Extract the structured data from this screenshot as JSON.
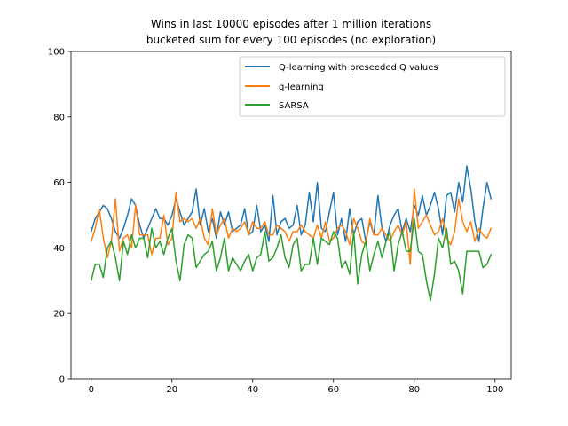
{
  "chart_data": {
    "type": "line",
    "title_line1": "Wins in last 10000 episodes after 1 million iterations",
    "title_line2": "bucketed sum for every 100 episodes (no exploration)",
    "xlabel": "",
    "ylabel": "",
    "xlim": [
      -5,
      104
    ],
    "ylim": [
      0,
      100
    ],
    "xticks": [
      0,
      20,
      40,
      60,
      80,
      100
    ],
    "yticks": [
      0,
      20,
      40,
      60,
      80,
      100
    ],
    "grid": false,
    "legend_position": "top-right",
    "series": [
      {
        "name": "Q-learning with preseeded Q values",
        "color": "#1f77b4",
        "values": [
          45,
          49,
          51,
          53,
          52,
          49,
          45,
          43,
          46,
          50,
          55,
          53,
          47,
          43,
          46,
          49,
          52,
          49,
          49,
          47,
          50,
          55,
          51,
          47,
          49,
          51,
          58,
          47,
          52,
          45,
          49,
          43,
          51,
          47,
          51,
          45,
          46,
          47,
          52,
          44,
          45,
          53,
          45,
          47,
          42,
          56,
          44,
          48,
          49,
          46,
          47,
          53,
          44,
          47,
          57,
          48,
          60,
          46,
          45,
          51,
          57,
          44,
          49,
          42,
          52,
          44,
          48,
          49,
          42,
          48,
          44,
          56,
          46,
          42,
          47,
          50,
          52,
          45,
          49,
          45,
          53,
          50,
          56,
          50,
          53,
          57,
          52,
          44,
          56,
          57,
          51,
          60,
          54,
          65,
          58,
          48,
          42,
          52,
          60,
          55
        ]
      },
      {
        "name": "q-learning",
        "color": "#ff7f0e",
        "values": [
          42,
          46,
          52,
          43,
          37,
          42,
          55,
          39,
          43,
          44,
          40,
          53,
          44,
          44,
          44,
          38,
          43,
          43,
          50,
          41,
          43,
          57,
          48,
          49,
          48,
          49,
          46,
          49,
          43,
          41,
          52,
          44,
          47,
          49,
          43,
          46,
          45,
          46,
          48,
          44,
          48,
          46,
          46,
          48,
          44,
          44,
          47,
          46,
          45,
          42,
          45,
          45,
          47,
          45,
          44,
          43,
          47,
          43,
          48,
          42,
          43,
          46,
          47,
          45,
          41,
          49,
          46,
          42,
          41,
          49,
          44,
          44,
          46,
          44,
          42,
          45,
          47,
          44,
          48,
          35,
          58,
          46,
          48,
          50,
          47,
          44,
          45,
          49,
          43,
          41,
          45,
          55,
          48,
          45,
          48,
          42,
          46,
          44,
          43,
          46
        ]
      },
      {
        "name": "SARSA",
        "color": "#2ca02c",
        "values": [
          30,
          35,
          35,
          31,
          40,
          42,
          37,
          30,
          42,
          38,
          44,
          40,
          43,
          43,
          37,
          46,
          40,
          42,
          38,
          43,
          46,
          36,
          30,
          41,
          44,
          43,
          34,
          36,
          38,
          39,
          42,
          33,
          37,
          43,
          33,
          37,
          35,
          33,
          36,
          38,
          33,
          37,
          38,
          45,
          36,
          37,
          40,
          44,
          37,
          34,
          41,
          43,
          33,
          35,
          35,
          43,
          35,
          43,
          42,
          41,
          45,
          43,
          34,
          36,
          32,
          45,
          29,
          38,
          42,
          33,
          38,
          42,
          37,
          42,
          45,
          33,
          41,
          45,
          39,
          39,
          49,
          39,
          38,
          30,
          24,
          32,
          43,
          40,
          46,
          35,
          36,
          33,
          26,
          39,
          39,
          39,
          39,
          34,
          35,
          38
        ]
      }
    ]
  }
}
